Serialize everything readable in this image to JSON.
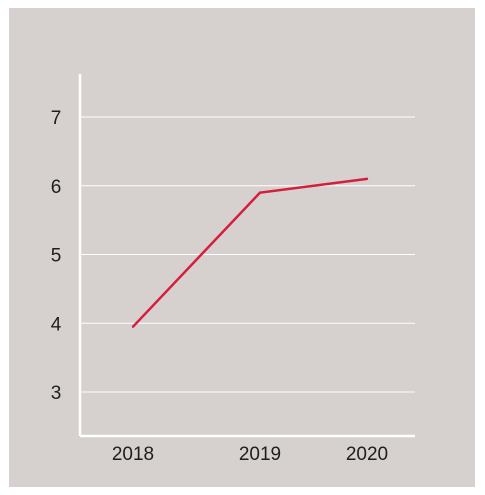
{
  "chart_data": {
    "type": "line",
    "title": "",
    "xlabel": "",
    "ylabel": "",
    "categories": [
      "2018",
      "2019",
      "2020"
    ],
    "series": [
      {
        "values": [
          3.95,
          5.9,
          6.1
        ]
      }
    ],
    "ylim": [
      2.5,
      7.5
    ],
    "yticks": [
      3,
      4,
      5,
      6,
      7
    ],
    "grid": "horizontal",
    "legend": "none",
    "colors": {
      "background": "#d6d1cf",
      "line": "#d41e3a",
      "grid": "#ffffff",
      "axis": "#ffffff",
      "text": "#1e1e1e"
    }
  }
}
